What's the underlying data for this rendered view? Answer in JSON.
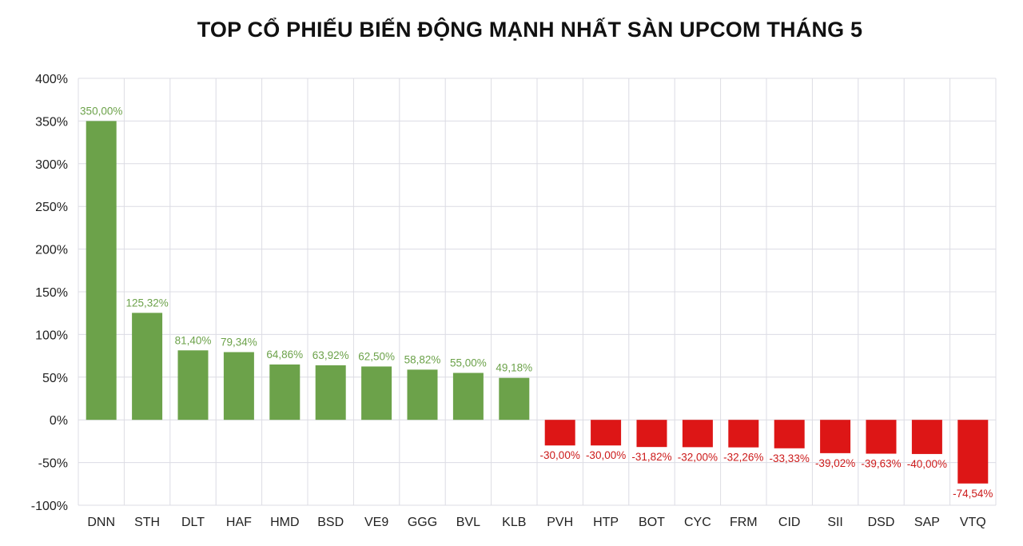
{
  "chart_data": {
    "type": "bar",
    "title": "TOP CỔ PHIẾU BIẾN ĐỘNG MẠNH NHẤT SÀN UPCOM THÁNG 5",
    "xlabel": "",
    "ylabel": "",
    "ylim": [
      -100,
      400
    ],
    "yticks": [
      400,
      350,
      300,
      250,
      200,
      150,
      100,
      50,
      0,
      -50,
      -100
    ],
    "ytick_labels": [
      "400%",
      "350%",
      "300%",
      "250%",
      "200%",
      "150%",
      "100%",
      "50%",
      "0%",
      "-50%",
      "-100%"
    ],
    "grid": true,
    "legend": "none",
    "categories": [
      "DNN",
      "STH",
      "DLT",
      "HAF",
      "HMD",
      "BSD",
      "VE9",
      "GGG",
      "BVL",
      "KLB",
      "PVH",
      "HTP",
      "BOT",
      "CYC",
      "FRM",
      "CID",
      "SII",
      "DSD",
      "SAP",
      "VTQ"
    ],
    "values": [
      350.0,
      125.32,
      81.4,
      79.34,
      64.86,
      63.92,
      62.5,
      58.82,
      55.0,
      49.18,
      -30.0,
      -30.0,
      -31.82,
      -32.0,
      -32.26,
      -33.33,
      -39.02,
      -39.63,
      -40.0,
      -74.54
    ],
    "data_labels": [
      "350,00%",
      "125,32%",
      "81,40%",
      "79,34%",
      "64,86%",
      "63,92%",
      "62,50%",
      "58,82%",
      "55,00%",
      "49,18%",
      "-30,00%",
      "-30,00%",
      "-31,82%",
      "-32,00%",
      "-32,26%",
      "-33,33%",
      "-39,02%",
      "-39,63%",
      "-40,00%",
      "-74,54%"
    ],
    "colors": {
      "positive": "#6ca24a",
      "negative": "#dd1616",
      "positive_label": "#6ca24a",
      "negative_label": "#cc1a1a",
      "grid": "#dcdce4"
    }
  }
}
